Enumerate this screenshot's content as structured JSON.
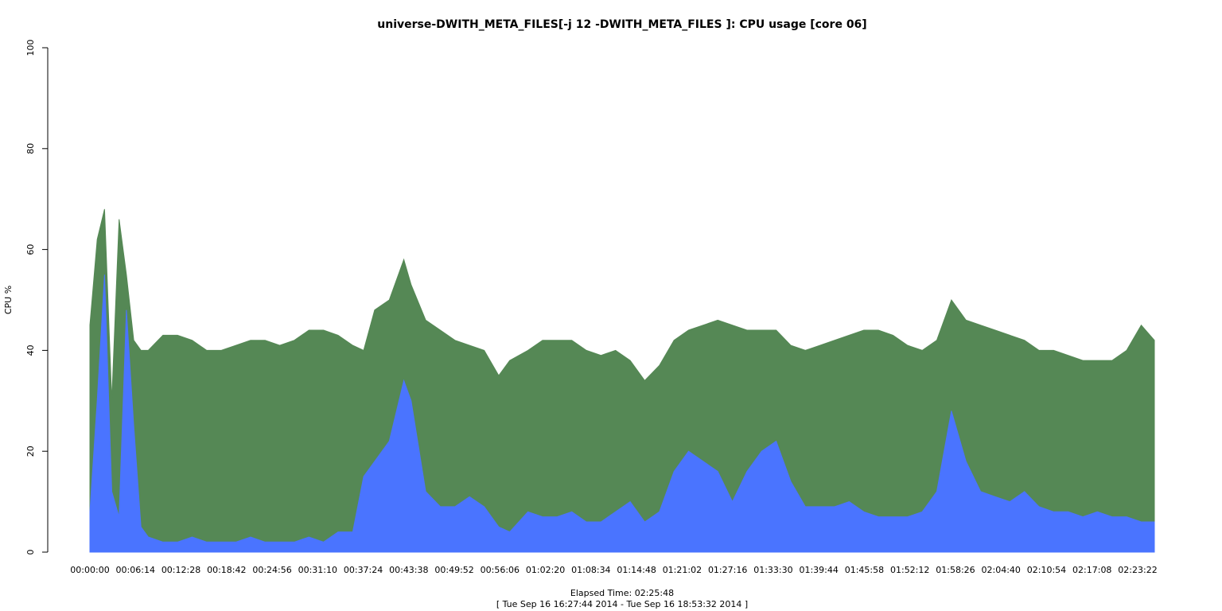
{
  "chart_data": {
    "type": "area",
    "title": "universe-DWITH_META_FILES[-j 12 -DWITH_META_FILES ]: CPU usage [core 06]",
    "ylabel": "CPU %",
    "xlabel": "Elapsed Time: 02:25:48",
    "subtitle": "[ Tue Sep 16 16:27:44 2014 - Tue Sep 16 18:53:32 2014 ]",
    "ylim": [
      0,
      100
    ],
    "y_ticks": [
      0,
      20,
      40,
      60,
      80,
      100
    ],
    "x_tick_labels": [
      "00:00:00",
      "00:06:14",
      "00:12:28",
      "00:18:42",
      "00:24:56",
      "00:31:10",
      "00:37:24",
      "00:43:38",
      "00:49:52",
      "00:56:06",
      "01:02:20",
      "01:08:34",
      "01:14:48",
      "01:21:02",
      "01:27:16",
      "01:33:30",
      "01:39:44",
      "01:45:58",
      "01:52:12",
      "01:58:26",
      "02:04:40",
      "02:10:54",
      "02:17:08",
      "02:23:22"
    ],
    "colors": {
      "total": "#558855",
      "lower": "#4a74ff"
    },
    "series": [
      {
        "x": [
          "00:00:00",
          "00:01:00",
          "00:02:00",
          "00:03:00",
          "00:04:00",
          "00:05:00",
          "00:06:00",
          "00:07:00",
          "00:08:00",
          "00:10:00",
          "00:12:00",
          "00:14:00",
          "00:16:00",
          "00:18:00",
          "00:20:00",
          "00:22:00",
          "00:24:00",
          "00:26:00",
          "00:28:00",
          "00:30:00",
          "00:32:00",
          "00:34:00",
          "00:36:00",
          "00:37:30",
          "00:39:00",
          "00:41:00",
          "00:43:00",
          "00:44:00",
          "00:46:00",
          "00:48:00",
          "00:50:00",
          "00:52:00",
          "00:54:00",
          "00:56:00",
          "00:57:30",
          "01:00:00",
          "01:02:00",
          "01:04:00",
          "01:06:00",
          "01:08:00",
          "01:10:00",
          "01:12:00",
          "01:14:00",
          "01:16:00",
          "01:18:00",
          "01:20:00",
          "01:22:00",
          "01:24:00",
          "01:26:00",
          "01:28:00",
          "01:30:00",
          "01:32:00",
          "01:34:00",
          "01:36:00",
          "01:38:00",
          "01:40:00",
          "01:42:00",
          "01:44:00",
          "01:46:00",
          "01:48:00",
          "01:50:00",
          "01:52:00",
          "01:54:00",
          "01:56:00",
          "01:58:00",
          "02:00:00",
          "02:02:00",
          "02:04:00",
          "02:06:00",
          "02:08:00",
          "02:10:00",
          "02:12:00",
          "02:14:00",
          "02:16:00",
          "02:18:00",
          "02:20:00",
          "02:22:00",
          "02:24:00",
          "02:25:48"
        ],
        "values": [
          45,
          62,
          68,
          30,
          66,
          55,
          42,
          40,
          40,
          43,
          43,
          42,
          40,
          40,
          41,
          42,
          42,
          41,
          42,
          44,
          44,
          43,
          41,
          40,
          48,
          50,
          58,
          53,
          46,
          44,
          42,
          41,
          40,
          35,
          38,
          40,
          42,
          42,
          42,
          40,
          39,
          40,
          38,
          34,
          37,
          42,
          44,
          45,
          46,
          45,
          44,
          44,
          44,
          41,
          40,
          41,
          42,
          43,
          44,
          44,
          43,
          41,
          40,
          42,
          50,
          46,
          45,
          44,
          43,
          42,
          40,
          40,
          39,
          38,
          38,
          38,
          40,
          45,
          42
        ]
      },
      {
        "x": [
          "00:00:00",
          "00:01:00",
          "00:02:00",
          "00:03:00",
          "00:04:00",
          "00:05:00",
          "00:06:00",
          "00:07:00",
          "00:08:00",
          "00:10:00",
          "00:12:00",
          "00:14:00",
          "00:16:00",
          "00:18:00",
          "00:20:00",
          "00:22:00",
          "00:24:00",
          "00:26:00",
          "00:28:00",
          "00:30:00",
          "00:32:00",
          "00:34:00",
          "00:36:00",
          "00:37:30",
          "00:39:00",
          "00:41:00",
          "00:43:00",
          "00:44:00",
          "00:46:00",
          "00:48:00",
          "00:50:00",
          "00:52:00",
          "00:54:00",
          "00:56:00",
          "00:57:30",
          "01:00:00",
          "01:02:00",
          "01:04:00",
          "01:06:00",
          "01:08:00",
          "01:10:00",
          "01:12:00",
          "01:14:00",
          "01:16:00",
          "01:18:00",
          "01:20:00",
          "01:22:00",
          "01:24:00",
          "01:26:00",
          "01:28:00",
          "01:30:00",
          "01:32:00",
          "01:34:00",
          "01:36:00",
          "01:38:00",
          "01:40:00",
          "01:42:00",
          "01:44:00",
          "01:46:00",
          "01:48:00",
          "01:50:00",
          "01:52:00",
          "01:54:00",
          "01:56:00",
          "01:58:00",
          "02:00:00",
          "02:02:00",
          "02:04:00",
          "02:06:00",
          "02:08:00",
          "02:10:00",
          "02:12:00",
          "02:14:00",
          "02:16:00",
          "02:18:00",
          "02:20:00",
          "02:22:00",
          "02:24:00",
          "02:25:48"
        ],
        "values": [
          8,
          30,
          55,
          12,
          7,
          48,
          25,
          5,
          3,
          2,
          2,
          3,
          2,
          2,
          2,
          3,
          2,
          2,
          2,
          3,
          2,
          4,
          4,
          15,
          18,
          22,
          34,
          30,
          12,
          9,
          9,
          11,
          9,
          5,
          4,
          8,
          7,
          7,
          8,
          6,
          6,
          8,
          10,
          6,
          8,
          16,
          20,
          18,
          16,
          10,
          16,
          20,
          22,
          14,
          9,
          9,
          9,
          10,
          8,
          7,
          7,
          7,
          8,
          12,
          28,
          18,
          12,
          11,
          10,
          12,
          9,
          8,
          8,
          7,
          8,
          7,
          7,
          6,
          6
        ]
      }
    ]
  }
}
